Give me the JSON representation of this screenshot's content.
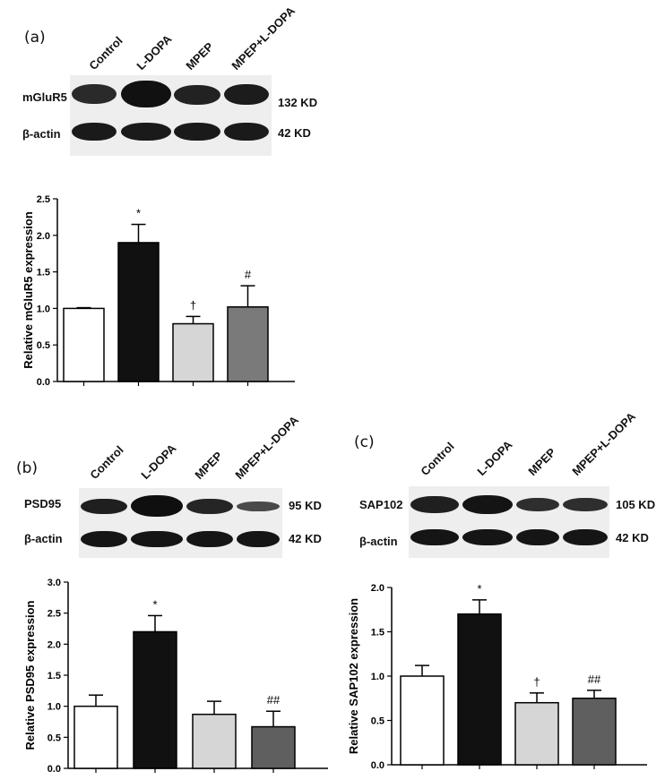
{
  "panels": [
    {
      "id": "a",
      "label": "(a)",
      "lanes": [
        "Control",
        "L-DOPA",
        "MPEP",
        "MPEP+L-DOPA"
      ],
      "protein": "mGluR5",
      "protein_kd": "132 KD",
      "control_protein": "β-actin",
      "control_kd": "42 KD"
    },
    {
      "id": "b",
      "label": "(b)",
      "lanes": [
        "Control",
        "L-DOPA",
        "MPEP",
        "MPEP+L-DOPA"
      ],
      "protein": "PSD95",
      "protein_kd": "95 KD",
      "control_protein": "β-actin",
      "control_kd": "42 KD"
    },
    {
      "id": "c",
      "label": "(c)",
      "lanes": [
        "Control",
        "L-DOPA",
        "MPEP",
        "MPEP+L-DOPA"
      ],
      "protein": "SAP102",
      "protein_kd": "105 KD",
      "control_protein": "β-actin",
      "control_kd": "42 KD"
    }
  ],
  "chart_data": [
    {
      "type": "bar",
      "panel": "a",
      "ylabel": "Relative mGluR5 expression",
      "ylim": [
        0,
        2.5
      ],
      "yticks": [
        "0.0",
        "0.5",
        "1.0",
        "1.5",
        "2.0",
        "2.5"
      ],
      "categories": [
        "Control",
        "L-DOPA",
        "MPEP",
        "MPEP+L-DOPA"
      ],
      "values": [
        1.0,
        1.9,
        0.79,
        1.02
      ],
      "errors": [
        0.01,
        0.25,
        0.1,
        0.29
      ],
      "colors": [
        "#ffffff",
        "#111111",
        "#d6d6d6",
        "#7a7a7a"
      ],
      "annotations": [
        "",
        "*",
        "†",
        "#"
      ]
    },
    {
      "type": "bar",
      "panel": "b",
      "ylabel": "Relative  PSD95 expression",
      "ylim": [
        0,
        3.0
      ],
      "yticks": [
        "0.0",
        "0.5",
        "1.0",
        "1.5",
        "2.0",
        "2.5",
        "3.0"
      ],
      "categories": [
        "Control",
        "L-DOPA",
        "MPEP",
        "MPEP+L-DOPA"
      ],
      "values": [
        1.0,
        2.2,
        0.87,
        0.67
      ],
      "errors": [
        0.18,
        0.26,
        0.21,
        0.25
      ],
      "colors": [
        "#ffffff",
        "#111111",
        "#d6d6d6",
        "#5f5f5f"
      ],
      "annotations": [
        "",
        "*",
        "",
        "##"
      ]
    },
    {
      "type": "bar",
      "panel": "c",
      "ylabel": "Relative  SAP102 expression",
      "ylim": [
        0,
        2.0
      ],
      "yticks": [
        "0.0",
        "0.5",
        "1.0",
        "1.5",
        "2.0"
      ],
      "categories": [
        "Control",
        "L-DOPA",
        "MPEP",
        "MPEP+L-DOPA"
      ],
      "values": [
        1.0,
        1.7,
        0.7,
        0.75
      ],
      "errors": [
        0.12,
        0.16,
        0.11,
        0.09
      ],
      "colors": [
        "#ffffff",
        "#111111",
        "#d6d6d6",
        "#5f5f5f"
      ],
      "annotations": [
        "",
        "*",
        "†",
        "##"
      ]
    }
  ]
}
